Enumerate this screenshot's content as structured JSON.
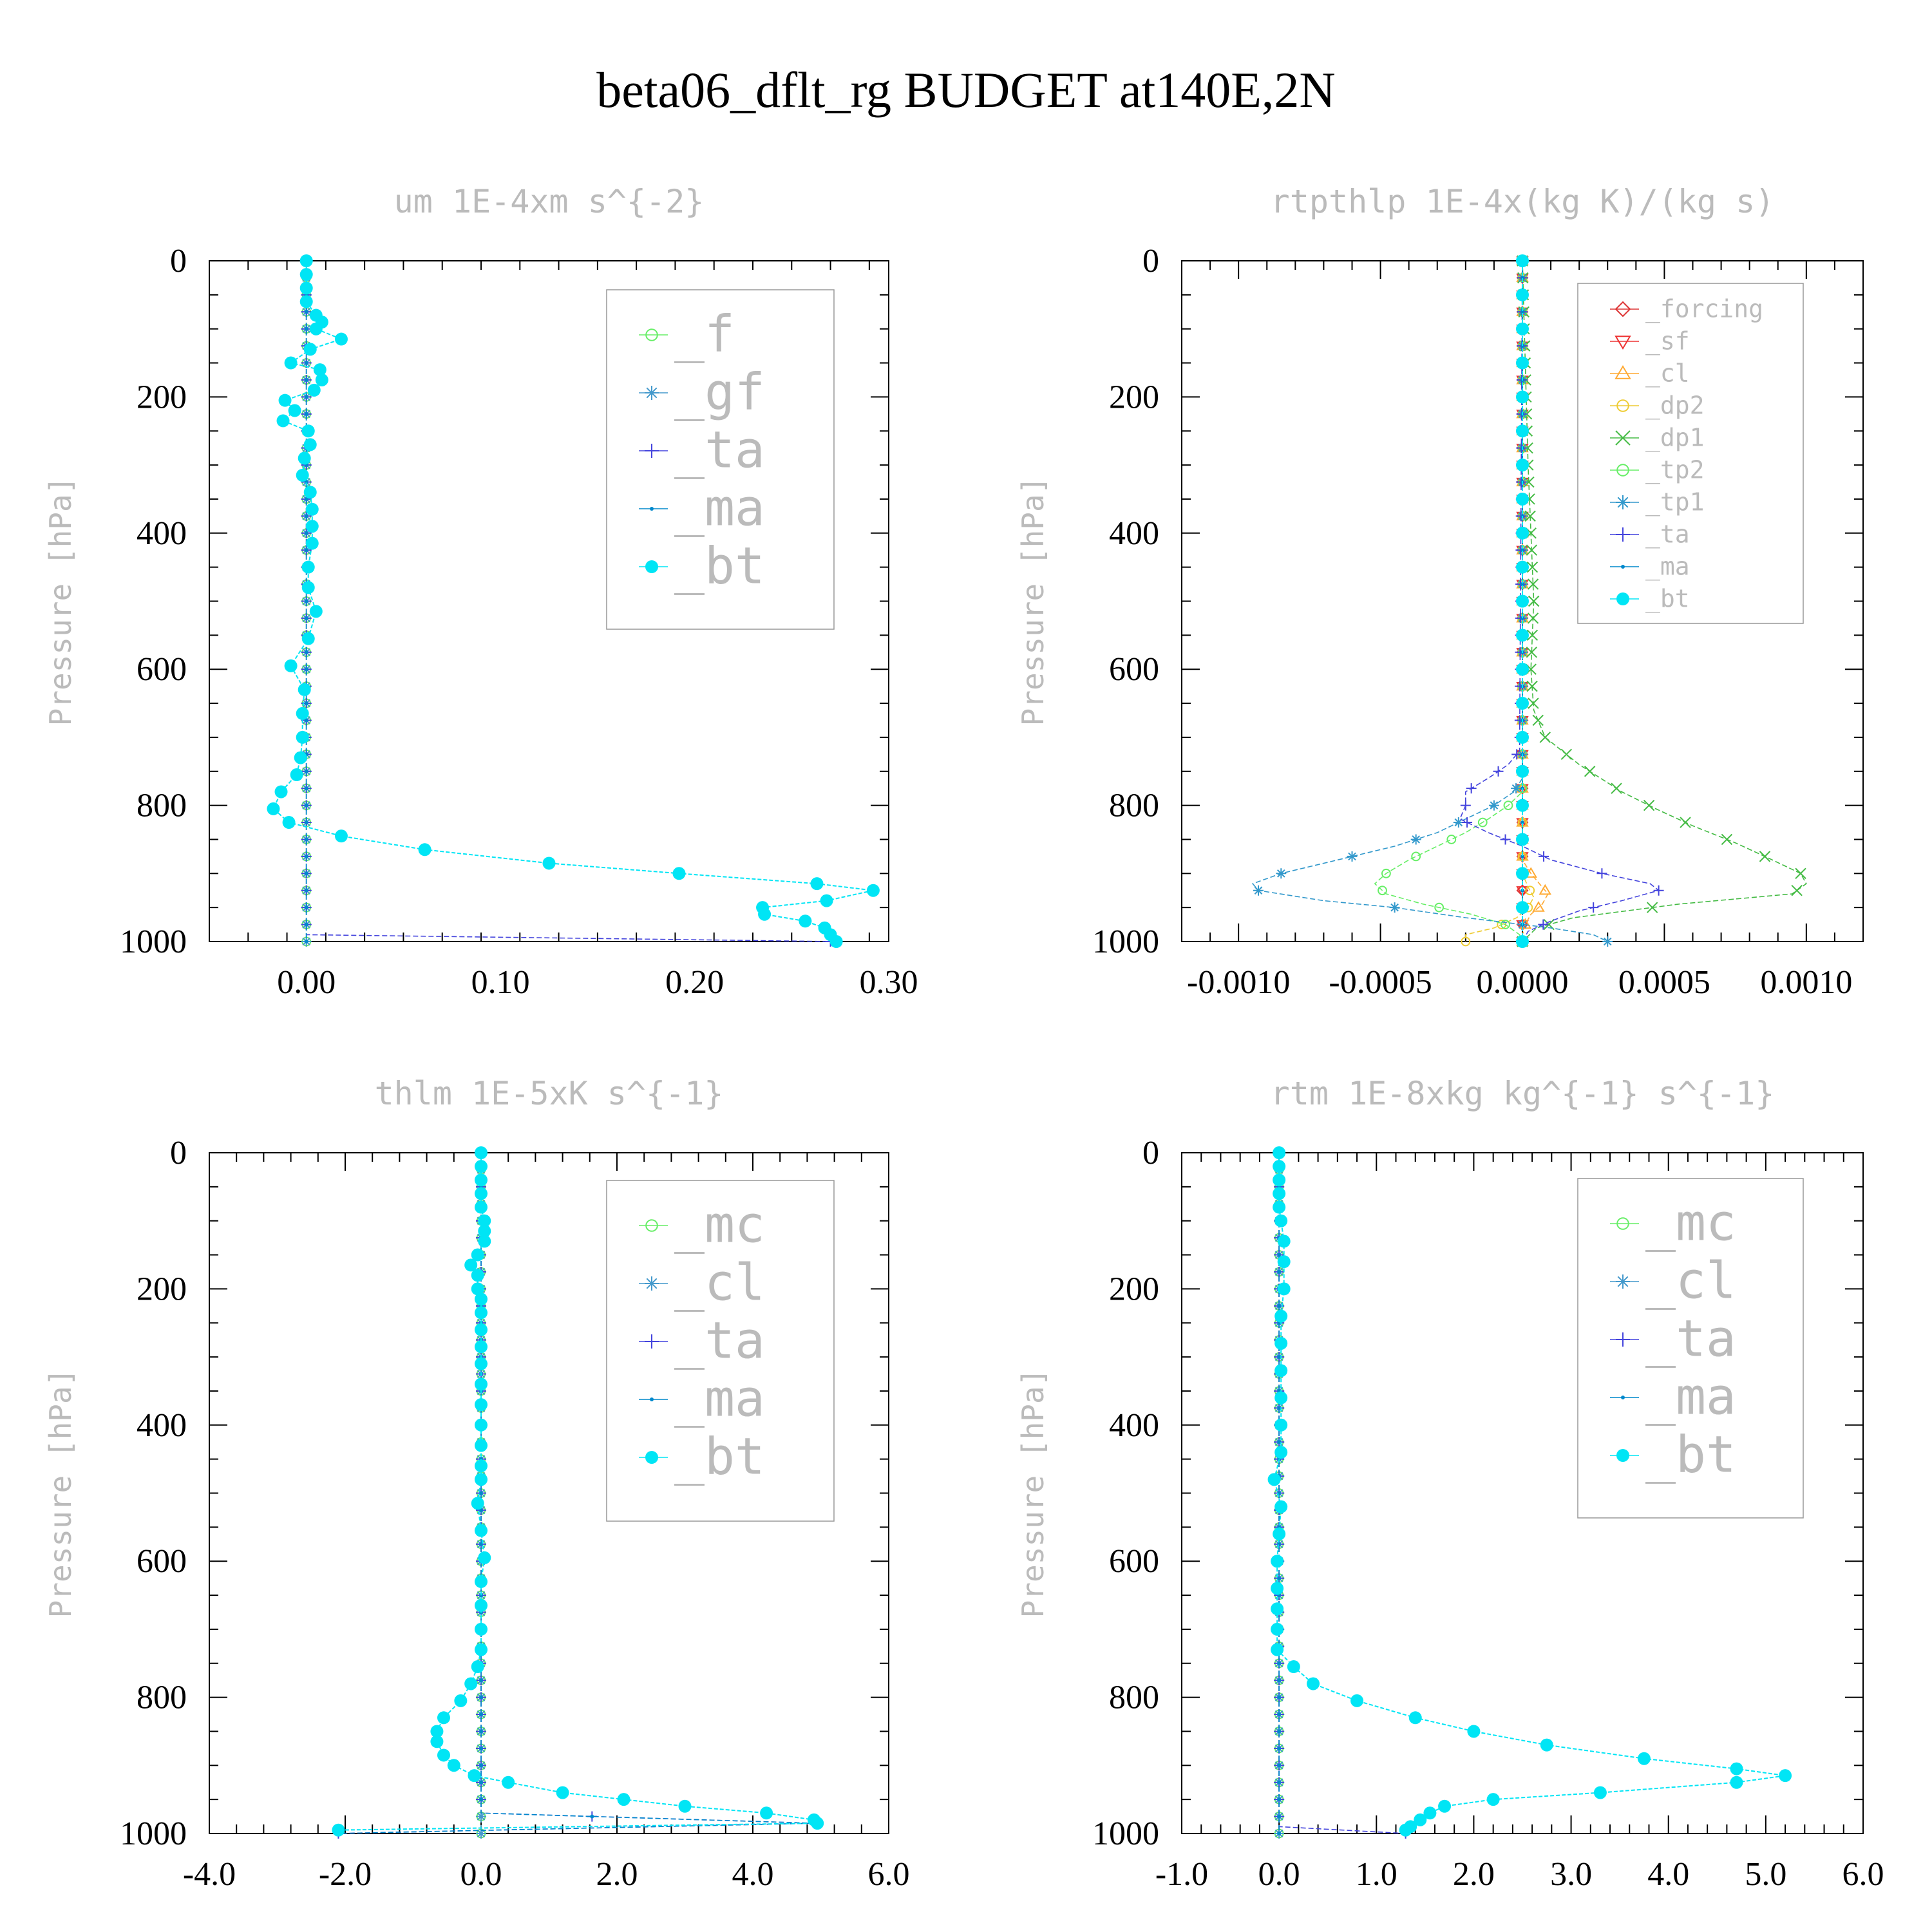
{
  "title": "beta06_dflt_rg  BUDGET at140E,2N",
  "chart_data": [
    {
      "type": "line",
      "title": "um  1E-4xm s^{-2}",
      "ylabel": "Pressure [hPa]",
      "xlim": [
        -0.05,
        0.3
      ],
      "ylim": [
        1000,
        0
      ],
      "xticks": [
        "0.00",
        "0.10",
        "0.20",
        "0.30"
      ],
      "xtick_values": [
        0.0,
        0.1,
        0.2,
        0.3
      ],
      "yticks": [
        "0",
        "200",
        "400",
        "600",
        "800",
        "1000"
      ],
      "legend": "top-right",
      "legend_size": "large",
      "series": [
        {
          "name": "_f",
          "color": "#66ee66",
          "marker": "circle-open",
          "p": [
            0,
            1000
          ],
          "x": [
            0,
            0
          ]
        },
        {
          "name": "_gf",
          "color": "#4499cc",
          "marker": "asterisk",
          "p": [
            0,
            1000
          ],
          "x": [
            0,
            0
          ]
        },
        {
          "name": "_ta",
          "color": "#4444dd",
          "marker": "plus",
          "p": [
            0,
            990,
            1000
          ],
          "x": [
            0,
            0,
            0.27
          ]
        },
        {
          "name": "_ma",
          "color": "#0088cc",
          "marker": "dot",
          "p": [
            0,
            1000
          ],
          "x": [
            0,
            0
          ]
        },
        {
          "name": "_bt",
          "color": "#00e5f5",
          "marker": "filled-circle",
          "p": [
            0,
            20,
            40,
            60,
            80,
            90,
            100,
            115,
            130,
            150,
            160,
            175,
            190,
            205,
            220,
            235,
            250,
            270,
            290,
            315,
            340,
            365,
            390,
            415,
            450,
            480,
            515,
            555,
            595,
            630,
            665,
            700,
            730,
            755,
            780,
            805,
            825,
            845,
            865,
            885,
            900,
            915,
            925,
            940,
            950,
            960,
            970,
            980,
            990,
            1000
          ],
          "x": [
            0,
            0,
            0,
            0,
            0.005,
            0.008,
            0.005,
            0.018,
            0.002,
            -0.008,
            0.007,
            0.008,
            0.004,
            -0.011,
            -0.006,
            -0.012,
            0.001,
            0.002,
            -0.001,
            -0.002,
            0.002,
            0.003,
            0.003,
            0.003,
            0.001,
            0.001,
            0.005,
            0.001,
            -0.008,
            -0.001,
            -0.002,
            -0.002,
            -0.003,
            -0.005,
            -0.013,
            -0.017,
            -0.009,
            0.018,
            0.061,
            0.125,
            0.192,
            0.263,
            0.292,
            0.268,
            0.235,
            0.236,
            0.257,
            0.267,
            0.27,
            0.273
          ]
        }
      ]
    },
    {
      "type": "line",
      "title": "rtpthlp  1E-4x(kg K)/(kg s)",
      "ylabel": "Pressure [hPa]",
      "xlim": [
        -0.0012,
        0.0012
      ],
      "ylim": [
        1000,
        0
      ],
      "xticks": [
        "-0.0010",
        "-0.0005",
        "0.0000",
        "0.0005",
        "0.0010"
      ],
      "xtick_values": [
        -0.001,
        -0.0005,
        0.0,
        0.0005,
        0.001
      ],
      "yticks": [
        "0",
        "200",
        "400",
        "600",
        "800",
        "1000"
      ],
      "legend": "top-right",
      "legend_size": "small",
      "series": [
        {
          "name": "_forcing",
          "color": "#dd3333",
          "marker": "diamond",
          "p": [
            0,
            1000
          ],
          "x": [
            0,
            0
          ]
        },
        {
          "name": "_sf",
          "color": "#ee3333",
          "marker": "triangle-down",
          "p": [
            0,
            1000
          ],
          "x": [
            0,
            0
          ]
        },
        {
          "name": "_cl",
          "color": "#ffaa33",
          "marker": "triangle-up",
          "p": [
            0,
            880,
            900,
            915,
            930,
            945,
            960,
            975,
            990,
            1000
          ],
          "x": [
            0,
            0,
            3e-05,
            6e-05,
            9e-05,
            7e-05,
            3e-05,
            1e-05,
            0,
            0
          ]
        },
        {
          "name": "_dp2",
          "color": "#eecc33",
          "marker": "circle-open",
          "p": [
            0,
            900,
            920,
            935,
            950,
            965,
            980,
            990,
            1000
          ],
          "x": [
            0,
            0,
            2e-05,
            4e-05,
            2e-05,
            -2e-05,
            -0.0001,
            -0.0002,
            -0.0002
          ]
        },
        {
          "name": "_dp1",
          "color": "#44bb44",
          "marker": "x",
          "p": [
            0,
            300,
            400,
            500,
            600,
            660,
            700,
            740,
            780,
            805,
            830,
            855,
            880,
            900,
            915,
            930,
            945,
            965,
            980,
            1000
          ],
          "x": [
            0,
            2e-05,
            3e-05,
            4e-05,
            3e-05,
            4e-05,
            8e-05,
            0.0002,
            0.00035,
            0.00047,
            0.0006,
            0.00075,
            0.00088,
            0.00098,
            0.001,
            0.00095,
            0.00055,
            0.00018,
            5e-05,
            0
          ]
        },
        {
          "name": "_tp2",
          "color": "#66ee66",
          "marker": "circle-open",
          "p": [
            0,
            780,
            800,
            820,
            840,
            860,
            880,
            900,
            915,
            930,
            945,
            960,
            975,
            990,
            1000
          ],
          "x": [
            0,
            0,
            -5e-05,
            -0.00012,
            -0.0002,
            -0.0003,
            -0.0004,
            -0.00048,
            -0.00052,
            -0.00048,
            -0.00035,
            -0.00018,
            -6e-05,
            -1e-05,
            0
          ]
        },
        {
          "name": "_tp1",
          "color": "#3399cc",
          "marker": "asterisk",
          "p": [
            0,
            760,
            780,
            800,
            820,
            840,
            860,
            880,
            900,
            915,
            925,
            940,
            950,
            965,
            980,
            990,
            1000
          ],
          "x": [
            0,
            0,
            -3e-05,
            -0.0001,
            -0.0002,
            -0.0003,
            -0.00045,
            -0.00065,
            -0.00085,
            -0.00095,
            -0.00093,
            -0.0007,
            -0.00045,
            -0.0002,
            0.0001,
            0.00025,
            0.0003
          ]
        },
        {
          "name": "_ta",
          "color": "#4444dd",
          "marker": "plus",
          "p": [
            0,
            720,
            740,
            760,
            780,
            800,
            820,
            840,
            860,
            880,
            900,
            915,
            925,
            940,
            955,
            970,
            985,
            1000
          ],
          "x": [
            0,
            -1e-05,
            -5e-05,
            -0.00012,
            -0.0002,
            -0.0002,
            -0.00022,
            -0.00012,
            0,
            0.0001,
            0.00028,
            0.00045,
            0.00048,
            0.00035,
            0.0002,
            0.0001,
            2e-05,
            0
          ]
        },
        {
          "name": "_ma",
          "color": "#0088cc",
          "marker": "dot",
          "p": [
            0,
            1000
          ],
          "x": [
            0,
            0
          ]
        },
        {
          "name": "_bt",
          "color": "#00e5f5",
          "marker": "filled-circle",
          "p": [
            0,
            50,
            100,
            150,
            200,
            250,
            300,
            350,
            400,
            450,
            500,
            550,
            600,
            650,
            700,
            750,
            800,
            850,
            900,
            950,
            1000
          ],
          "x": [
            0,
            0,
            0,
            0,
            0,
            0,
            0,
            0,
            0,
            0,
            0,
            0,
            0,
            0,
            0,
            0,
            0,
            0,
            0,
            0,
            0
          ]
        }
      ]
    },
    {
      "type": "line",
      "title": "thlm  1E-5xK s^{-1}",
      "ylabel": "Pressure [hPa]",
      "xlim": [
        -4.0,
        6.0
      ],
      "ylim": [
        1000,
        0
      ],
      "xticks": [
        "-4.0",
        "-2.0",
        "0.0",
        "2.0",
        "4.0",
        "6.0"
      ],
      "xtick_values": [
        -4,
        -2,
        0,
        2,
        4,
        6
      ],
      "yticks": [
        "0",
        "200",
        "400",
        "600",
        "800",
        "1000"
      ],
      "legend": "top-right",
      "legend_size": "large",
      "series": [
        {
          "name": "_mc",
          "color": "#66ee66",
          "marker": "circle-open",
          "p": [
            0,
            1000
          ],
          "x": [
            0,
            0
          ]
        },
        {
          "name": "_cl",
          "color": "#4499cc",
          "marker": "asterisk",
          "p": [
            0,
            1000
          ],
          "x": [
            0,
            0
          ]
        },
        {
          "name": "_ta",
          "color": "#4444dd",
          "marker": "plus",
          "p": [
            0,
            970,
            985,
            1000
          ],
          "x": [
            0,
            0,
            4.9,
            -2.1
          ]
        },
        {
          "name": "_ma",
          "color": "#0088cc",
          "marker": "dot",
          "p": [
            0,
            970,
            985,
            1000
          ],
          "x": [
            0,
            0,
            4.9,
            -2.1
          ]
        },
        {
          "name": "_bt",
          "color": "#00e5f5",
          "marker": "filled-circle",
          "p": [
            0,
            20,
            40,
            60,
            80,
            100,
            115,
            130,
            150,
            165,
            180,
            200,
            215,
            235,
            260,
            285,
            310,
            340,
            370,
            400,
            430,
            460,
            480,
            515,
            555,
            595,
            630,
            665,
            700,
            730,
            755,
            780,
            805,
            830,
            850,
            865,
            885,
            900,
            915,
            925,
            940,
            950,
            960,
            970,
            980,
            985,
            995
          ],
          "x": [
            0,
            0,
            0,
            0,
            0,
            0.05,
            0.05,
            0.05,
            -0.05,
            -0.15,
            -0.05,
            -0.05,
            0,
            0,
            0,
            0,
            0,
            0,
            0,
            0,
            0,
            0,
            0,
            -0.05,
            0,
            0.05,
            0,
            0,
            0,
            0,
            -0.05,
            -0.15,
            -0.3,
            -0.55,
            -0.65,
            -0.65,
            -0.55,
            -0.4,
            -0.1,
            0.4,
            1.2,
            2.1,
            3.0,
            4.2,
            4.9,
            4.95,
            -2.1
          ]
        }
      ]
    },
    {
      "type": "line",
      "title": "rtm  1E-8xkg kg^{-1} s^{-1}",
      "ylabel": "Pressure [hPa]",
      "xlim": [
        -1.0,
        6.0
      ],
      "ylim": [
        1000,
        0
      ],
      "xticks": [
        "-1.0",
        "0.0",
        "1.0",
        "2.0",
        "3.0",
        "4.0",
        "5.0",
        "6.0"
      ],
      "xtick_values": [
        -1,
        0,
        1,
        2,
        3,
        4,
        5,
        6
      ],
      "yticks": [
        "0",
        "200",
        "400",
        "600",
        "800",
        "1000"
      ],
      "legend": "top-right",
      "legend_size": "large",
      "series": [
        {
          "name": "_mc",
          "color": "#66ee66",
          "marker": "circle-open",
          "p": [
            0,
            1000
          ],
          "x": [
            0,
            0
          ]
        },
        {
          "name": "_cl",
          "color": "#4499cc",
          "marker": "asterisk",
          "p": [
            0,
            1000
          ],
          "x": [
            0,
            0
          ]
        },
        {
          "name": "_ta",
          "color": "#4444dd",
          "marker": "plus",
          "p": [
            0,
            990,
            1000
          ],
          "x": [
            0,
            0,
            1.3
          ]
        },
        {
          "name": "_ma",
          "color": "#0088cc",
          "marker": "dot",
          "p": [
            0,
            1000
          ],
          "x": [
            0,
            0
          ]
        },
        {
          "name": "_bt",
          "color": "#00e5f5",
          "marker": "filled-circle",
          "p": [
            0,
            20,
            40,
            60,
            80,
            100,
            130,
            160,
            200,
            240,
            280,
            320,
            360,
            400,
            440,
            480,
            520,
            560,
            600,
            640,
            670,
            700,
            730,
            755,
            780,
            805,
            830,
            850,
            870,
            890,
            905,
            915,
            925,
            940,
            950,
            960,
            970,
            980,
            990,
            995
          ],
          "x": [
            0,
            0,
            0,
            0,
            0,
            0.02,
            0.05,
            0.05,
            0.05,
            0.02,
            0.02,
            0.02,
            0.02,
            0.02,
            0.02,
            -0.05,
            0.02,
            0.0,
            -0.02,
            -0.02,
            -0.02,
            -0.02,
            -0.02,
            0.15,
            0.35,
            0.8,
            1.4,
            2.0,
            2.75,
            3.75,
            4.7,
            5.2,
            4.7,
            3.3,
            2.2,
            1.7,
            1.55,
            1.45,
            1.35,
            1.3
          ]
        }
      ]
    }
  ]
}
